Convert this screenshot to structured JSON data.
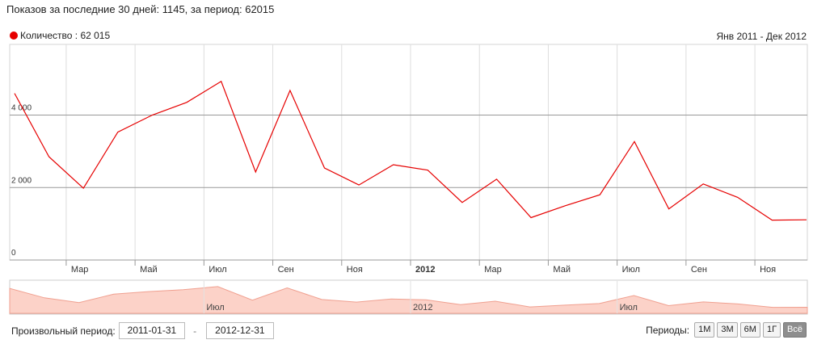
{
  "summary": "Показов за последние 30 дней: 1145, за период: 62015",
  "legend": {
    "label": "Количество : 62 015",
    "color": "#e60000"
  },
  "range_label": "Янв 2011 - Дек 2012",
  "chart_data": {
    "type": "line",
    "x": [
      "2011-01",
      "2011-02",
      "2011-03",
      "2011-04",
      "2011-05",
      "2011-06",
      "2011-07",
      "2011-08",
      "2011-09",
      "2011-10",
      "2011-11",
      "2011-12",
      "2012-01",
      "2012-02",
      "2012-03",
      "2012-04",
      "2012-05",
      "2012-06",
      "2012-07",
      "2012-08",
      "2012-09",
      "2012-10",
      "2012-11",
      "2012-12"
    ],
    "series": [
      {
        "name": "Количество",
        "values": [
          4600,
          2850,
          1980,
          3530,
          4000,
          4350,
          4930,
          2430,
          4680,
          2540,
          2070,
          2630,
          2480,
          1590,
          2230,
          1170,
          1500,
          1800,
          3270,
          1410,
          2100,
          1730,
          1100,
          1110
        ]
      }
    ],
    "ylim": [
      0,
      5950
    ],
    "yticks": [
      {
        "value": 0,
        "label": "0"
      },
      {
        "value": 2000,
        "label": "2 000"
      },
      {
        "value": 4000,
        "label": "4 000"
      }
    ],
    "xticks": [
      {
        "index": 1.5,
        "label": "Мар",
        "bold": false
      },
      {
        "index": 3.5,
        "label": "Май",
        "bold": false
      },
      {
        "index": 5.5,
        "label": "Июл",
        "bold": false
      },
      {
        "index": 7.5,
        "label": "Сен",
        "bold": false
      },
      {
        "index": 9.5,
        "label": "Ноя",
        "bold": false
      },
      {
        "index": 11.5,
        "label": "2012",
        "bold": true
      },
      {
        "index": 13.5,
        "label": "Мар",
        "bold": false
      },
      {
        "index": 15.5,
        "label": "Май",
        "bold": false
      },
      {
        "index": 17.5,
        "label": "Июл",
        "bold": false
      },
      {
        "index": 19.5,
        "label": "Сен",
        "bold": false
      },
      {
        "index": 21.5,
        "label": "Ноя",
        "bold": false
      }
    ],
    "navigator_labels": [
      {
        "index": 5.5,
        "label": "Июл"
      },
      {
        "index": 11.5,
        "label": "2012"
      },
      {
        "index": 17.5,
        "label": "Июл"
      }
    ],
    "line_color": "#e60000",
    "area_color": "#fcd2c8"
  },
  "custom_period": {
    "label": "Произвольный период:",
    "from": "2011-01-31",
    "separator": "-",
    "to": "2012-12-31"
  },
  "periods": {
    "label": "Периоды:",
    "buttons": [
      "1М",
      "3М",
      "6М",
      "1Г",
      "Всё"
    ],
    "active": "Всё"
  }
}
